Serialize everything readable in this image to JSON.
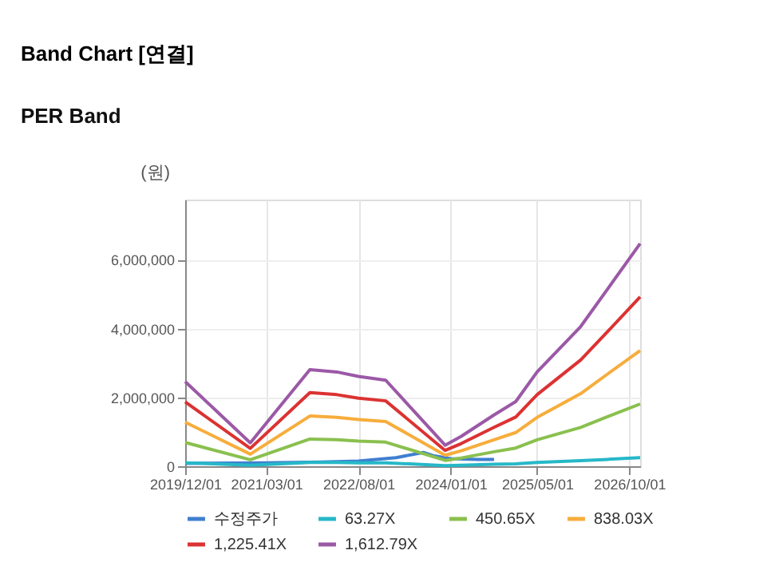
{
  "chart_data": {
    "type": "line",
    "title": "Band Chart [연결]",
    "subtitle": "PER Band",
    "ylabel": "(원)",
    "x": [
      "2019-12-01",
      "2020-12-01",
      "2021-11-01",
      "2022-04-01",
      "2022-08-01",
      "2023-01-01",
      "2023-12-01",
      "2024-03-01",
      "2024-09-01",
      "2025-01-01",
      "2025-05-01",
      "2026-01-01",
      "2026-06-01",
      "2026-12-01"
    ],
    "series": [
      {
        "name": "수정주가",
        "color": "#3f7fd0",
        "x": [
          "2019-12-01",
          "2021-03-01",
          "2022-01-01",
          "2022-08-01",
          "2023-03-01",
          "2023-08-01",
          "2023-10-01",
          "2024-01-01",
          "2024-06-01",
          "2024-09-01"
        ],
        "values": [
          80000,
          100000,
          120000,
          150000,
          250000,
          400000,
          300000,
          220000,
          200000,
          200000
        ]
      },
      {
        "name": "63.27X",
        "color": "#26b8c8",
        "values": [
          100000,
          30000,
          110000,
          110000,
          100000,
          100000,
          20000,
          30000,
          60000,
          70000,
          110000,
          160000,
          200000,
          250000
        ]
      },
      {
        "name": "450.65X",
        "color": "#8ac04f",
        "values": [
          690000,
          190000,
          790000,
          770000,
          730000,
          700000,
          170000,
          240000,
          420000,
          530000,
          770000,
          1130000,
          1440000,
          1810000
        ]
      },
      {
        "name": "838.03X",
        "color": "#f7ad3c",
        "values": [
          1280000,
          350000,
          1460000,
          1420000,
          1360000,
          1300000,
          320000,
          450000,
          770000,
          980000,
          1420000,
          2110000,
          2680000,
          3360000
        ]
      },
      {
        "name": "1,225.41X",
        "color": "#dc3232",
        "values": [
          1870000,
          520000,
          2140000,
          2080000,
          1980000,
          1900000,
          460000,
          660000,
          1130000,
          1430000,
          2080000,
          3090000,
          3910000,
          4920000
        ]
      },
      {
        "name": "1,612.79X",
        "color": "#9b59a6",
        "values": [
          2460000,
          680000,
          2810000,
          2740000,
          2610000,
          2500000,
          610000,
          870000,
          1490000,
          1880000,
          2740000,
          4060000,
          5150000,
          6470000
        ]
      }
    ],
    "xlim": [
      "2019-12-01",
      "2026-12-01"
    ],
    "xticks": [
      {
        "value": "2019-12-01",
        "label": "2019/12/01"
      },
      {
        "value": "2021-03-01",
        "label": "2021/03/01"
      },
      {
        "value": "2022-08-01",
        "label": "2022/08/01"
      },
      {
        "value": "2024-01-01",
        "label": "2024/01/01"
      },
      {
        "value": "2025-05-01",
        "label": "2025/05/01"
      },
      {
        "value": "2026-10-01",
        "label": "2026/10/01"
      }
    ],
    "ylim": [
      0,
      7750000
    ],
    "yticks": [
      0,
      {
        "value": 2000000,
        "label": "2,000,000"
      },
      {
        "value": 4000000,
        "label": "4,000,000"
      },
      {
        "value": 6000000,
        "label": "6,000,000"
      }
    ],
    "grid": true,
    "legend": "bottom",
    "marker": "none",
    "line_style": "solid"
  }
}
